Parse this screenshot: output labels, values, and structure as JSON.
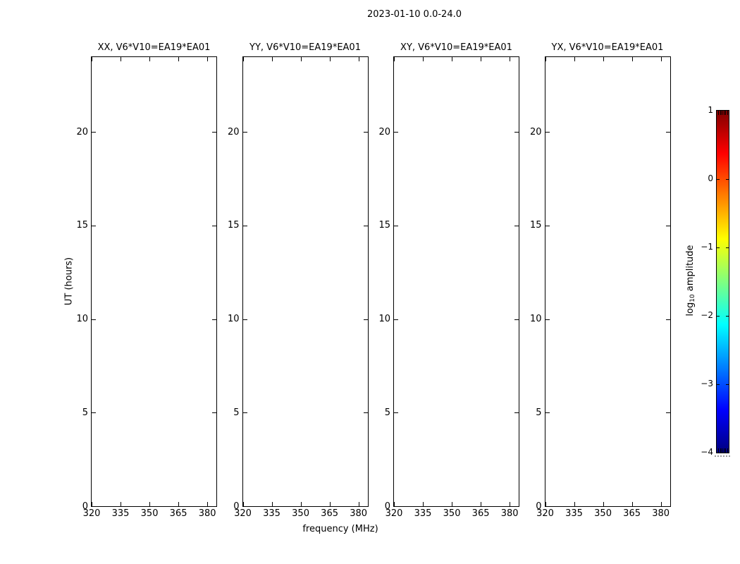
{
  "figure": {
    "title": "2023-01-10 0.0-24.0",
    "background": "#ffffff",
    "frame_color": "#000000"
  },
  "chart_data": {
    "type": "heatmap",
    "title": "2023-01-10 0.0-24.0",
    "xlabel": "frequency (MHz)",
    "ylabel": "UT (hours)",
    "xlim": [
      320,
      384.7
    ],
    "ylim": [
      0,
      24
    ],
    "xticks": [
      320,
      335,
      350,
      365,
      380
    ],
    "yticks": [
      0,
      5,
      10,
      15,
      20
    ],
    "grid": false,
    "legend": "none",
    "panels": [
      {
        "id": "XX",
        "title": "XX, V6*V10=EA19*EA01",
        "values": []
      },
      {
        "id": "YY",
        "title": "YY, V6*V10=EA19*EA01",
        "values": []
      },
      {
        "id": "XY",
        "title": "XY, V6*V10=EA19*EA01",
        "values": []
      },
      {
        "id": "YX",
        "title": "YX, V6*V10=EA19*EA01",
        "values": []
      }
    ],
    "note": "all four spectrogram panels are blank (no data rendered in plot areas)",
    "colorbar": {
      "label": "log10 amplitude",
      "label_prefix": "log",
      "label_sub": "10",
      "label_rest": " amplitude",
      "tick_labels": [
        "1",
        "0",
        "−1",
        "−2",
        "−3",
        "−4"
      ],
      "tick_values": [
        1,
        0,
        -1,
        -2,
        -3,
        -4
      ],
      "range": [
        -4,
        1
      ],
      "colormap": "jet",
      "gradient_stops": [
        {
          "pos": 0.0,
          "color": "#00007f"
        },
        {
          "pos": 0.125,
          "color": "#0000ff"
        },
        {
          "pos": 0.375,
          "color": "#00ffff"
        },
        {
          "pos": 0.625,
          "color": "#ffff00"
        },
        {
          "pos": 0.875,
          "color": "#ff0000"
        },
        {
          "pos": 1.0,
          "color": "#7f0000"
        }
      ]
    }
  }
}
